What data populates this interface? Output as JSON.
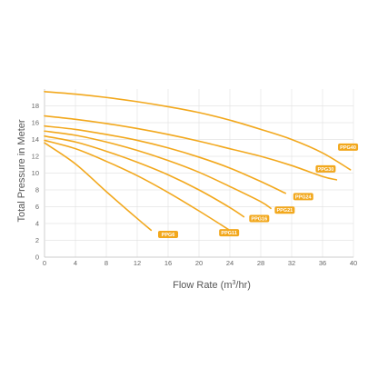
{
  "colors": {
    "curve": "#F2A81D",
    "label_bg": "#F2A81D",
    "grid": "#E4E4E4",
    "axis": "#BBBBBB",
    "text": "#555555"
  },
  "chart_data": {
    "type": "line",
    "xlabel_main": "Flow Rate (m",
    "xlabel_sup": "3",
    "xlabel_tail": "/hr)",
    "ylabel": "Total Pressure in Meter",
    "xlim": [
      0,
      40
    ],
    "ylim": [
      0,
      20
    ],
    "xticks": [
      0,
      4,
      8,
      12,
      16,
      20,
      24,
      28,
      32,
      36,
      40
    ],
    "yticks": [
      0,
      2,
      4,
      6,
      8,
      10,
      12,
      14,
      16,
      18
    ],
    "grid": true,
    "series": [
      {
        "name": "PPG6",
        "x": [
          0,
          4,
          8,
          12,
          13.8
        ],
        "y": [
          13.6,
          11.1,
          7.8,
          4.6,
          3.2
        ],
        "label_at": [
          16,
          2.7
        ]
      },
      {
        "name": "PPG11",
        "x": [
          0,
          4,
          8,
          12,
          16,
          20,
          23.8
        ],
        "y": [
          13.9,
          12.9,
          11.4,
          9.7,
          7.7,
          5.5,
          3.3
        ],
        "label_at": [
          23.9,
          2.9
        ]
      },
      {
        "name": "PPG16",
        "x": [
          0,
          4,
          8,
          12,
          16,
          20,
          24,
          25.8
        ],
        "y": [
          14.4,
          13.7,
          12.6,
          11.3,
          9.8,
          8.0,
          5.9,
          4.8
        ],
        "label_at": [
          27.8,
          4.6
        ]
      },
      {
        "name": "PPG21",
        "x": [
          0,
          4,
          8,
          12,
          16,
          20,
          24,
          28,
          29.3
        ],
        "y": [
          15.0,
          14.5,
          13.7,
          12.7,
          11.5,
          10.1,
          8.4,
          6.6,
          5.8
        ],
        "label_at": [
          31.1,
          5.6
        ]
      },
      {
        "name": "PPG24",
        "x": [
          0,
          4,
          8,
          12,
          16,
          20,
          24,
          28,
          31.2
        ],
        "y": [
          15.6,
          15.2,
          14.6,
          13.9,
          13.0,
          11.9,
          10.6,
          9.0,
          7.6
        ],
        "label_at": [
          33.5,
          7.2
        ]
      },
      {
        "name": "PPG30",
        "x": [
          0,
          4,
          8,
          12,
          16,
          20,
          24,
          28,
          32,
          36,
          37.8
        ],
        "y": [
          16.8,
          16.4,
          15.9,
          15.3,
          14.6,
          13.8,
          12.9,
          12.0,
          10.9,
          9.6,
          9.2
        ],
        "label_at": [
          36.4,
          10.5
        ]
      },
      {
        "name": "PPG40",
        "x": [
          0,
          4,
          8,
          12,
          16,
          20,
          24,
          28,
          32,
          36,
          39.6
        ],
        "y": [
          19.7,
          19.4,
          19.0,
          18.5,
          17.9,
          17.2,
          16.3,
          15.2,
          14.0,
          12.4,
          10.4
        ],
        "label_at": [
          39.3,
          13.1
        ]
      }
    ]
  }
}
